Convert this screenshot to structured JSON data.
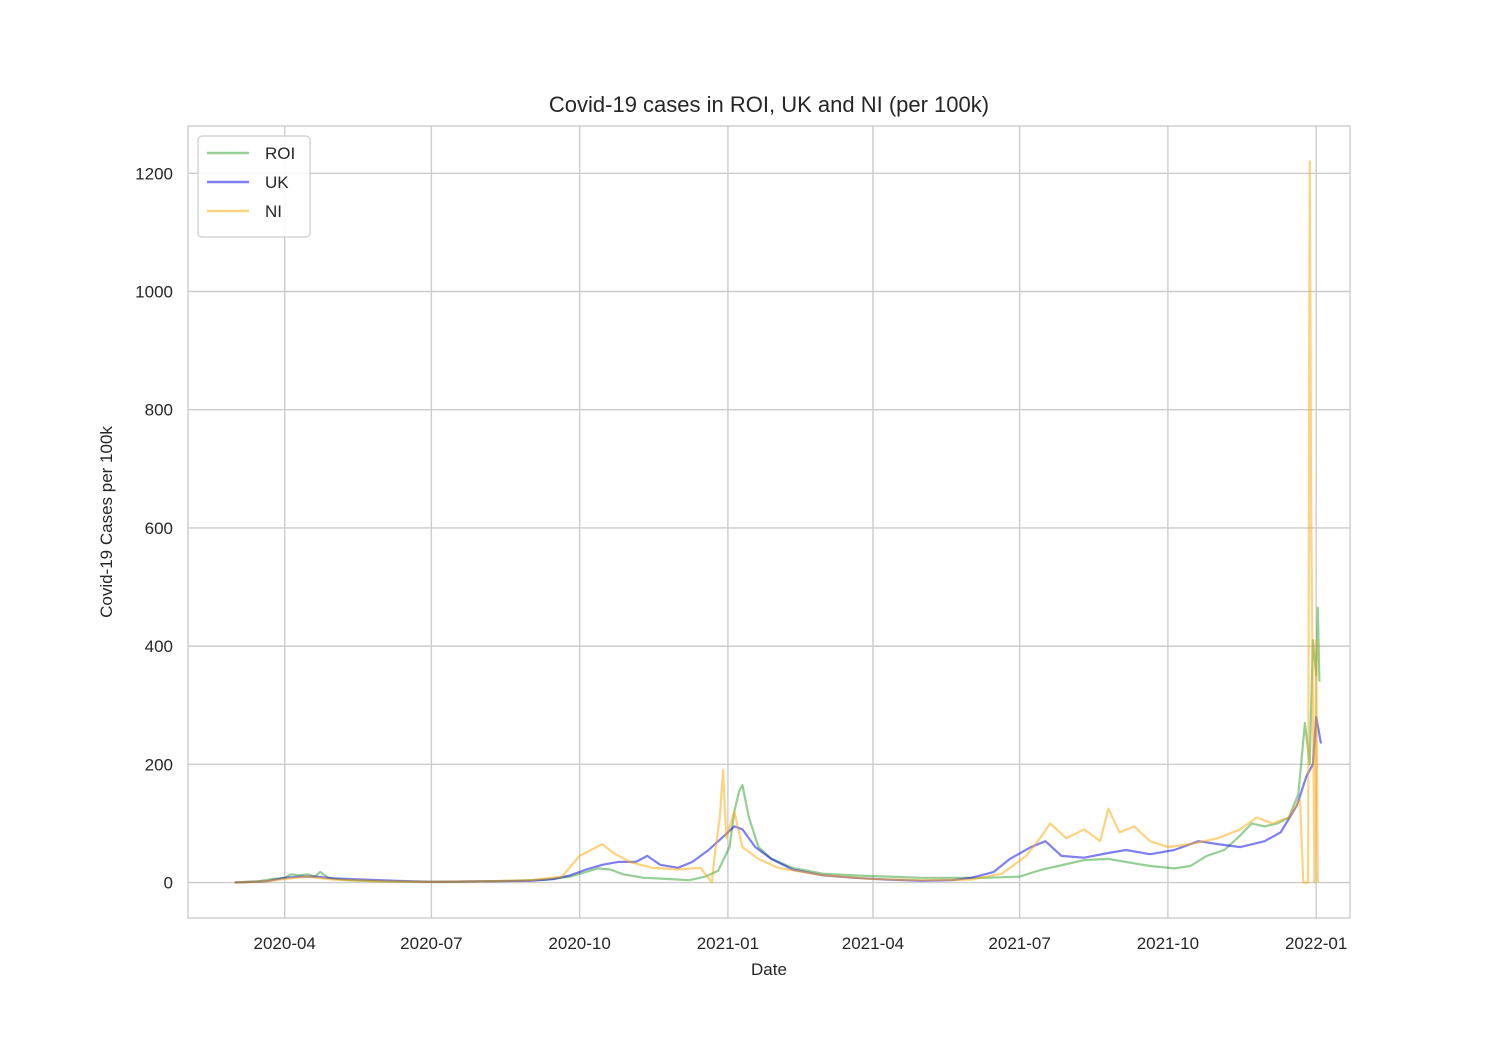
{
  "chart_data": {
    "type": "line",
    "title": "Covid-19 cases in ROI, UK and NI (per 100k)",
    "xlabel": "Date",
    "ylabel": "Covid-19 Cases per 100k",
    "xlim": [
      "2020-02-01",
      "2022-01-22"
    ],
    "ylim": [
      -60,
      1280
    ],
    "x_ticks": [
      "2020-04",
      "2020-07",
      "2020-10",
      "2021-01",
      "2021-04",
      "2021-07",
      "2021-10",
      "2022-01"
    ],
    "y_ticks": [
      0,
      200,
      400,
      600,
      800,
      1000,
      1200
    ],
    "grid": true,
    "legend_position": "top-left",
    "series": [
      {
        "name": "ROI",
        "color": "#2ca02c",
        "points": [
          [
            "2020-03-01",
            0
          ],
          [
            "2020-03-15",
            2
          ],
          [
            "2020-03-25",
            6
          ],
          [
            "2020-04-01",
            8
          ],
          [
            "2020-04-05",
            14
          ],
          [
            "2020-04-10",
            12
          ],
          [
            "2020-04-15",
            14
          ],
          [
            "2020-04-20",
            10
          ],
          [
            "2020-04-23",
            18
          ],
          [
            "2020-04-28",
            8
          ],
          [
            "2020-05-10",
            4
          ],
          [
            "2020-06-01",
            2
          ],
          [
            "2020-07-01",
            1
          ],
          [
            "2020-08-01",
            2
          ],
          [
            "2020-08-20",
            3
          ],
          [
            "2020-09-10",
            5
          ],
          [
            "2020-09-25",
            10
          ],
          [
            "2020-10-05",
            18
          ],
          [
            "2020-10-12",
            24
          ],
          [
            "2020-10-20",
            22
          ],
          [
            "2020-10-28",
            14
          ],
          [
            "2020-11-10",
            8
          ],
          [
            "2020-11-25",
            6
          ],
          [
            "2020-12-08",
            4
          ],
          [
            "2020-12-18",
            10
          ],
          [
            "2020-12-26",
            20
          ],
          [
            "2021-01-02",
            60
          ],
          [
            "2021-01-05",
            120
          ],
          [
            "2021-01-08",
            155
          ],
          [
            "2021-01-10",
            165
          ],
          [
            "2021-01-14",
            110
          ],
          [
            "2021-01-20",
            60
          ],
          [
            "2021-01-28",
            40
          ],
          [
            "2021-02-10",
            25
          ],
          [
            "2021-03-01",
            15
          ],
          [
            "2021-03-20",
            12
          ],
          [
            "2021-04-10",
            10
          ],
          [
            "2021-05-01",
            8
          ],
          [
            "2021-05-20",
            8
          ],
          [
            "2021-06-10",
            8
          ],
          [
            "2021-07-01",
            10
          ],
          [
            "2021-07-15",
            22
          ],
          [
            "2021-07-25",
            28
          ],
          [
            "2021-08-10",
            38
          ],
          [
            "2021-08-25",
            40
          ],
          [
            "2021-09-05",
            35
          ],
          [
            "2021-09-20",
            28
          ],
          [
            "2021-10-05",
            24
          ],
          [
            "2021-10-15",
            28
          ],
          [
            "2021-10-25",
            45
          ],
          [
            "2021-11-05",
            55
          ],
          [
            "2021-11-15",
            80
          ],
          [
            "2021-11-22",
            100
          ],
          [
            "2021-11-30",
            95
          ],
          [
            "2021-12-08",
            100
          ],
          [
            "2021-12-15",
            110
          ],
          [
            "2021-12-21",
            150
          ],
          [
            "2021-12-25",
            270
          ],
          [
            "2021-12-28",
            200
          ],
          [
            "2021-12-30",
            410
          ],
          [
            "2022-01-01",
            350
          ],
          [
            "2022-01-02",
            465
          ],
          [
            "2022-01-03",
            340
          ]
        ]
      },
      {
        "name": "UK",
        "color": "#0000e6",
        "points": [
          [
            "2020-03-01",
            0
          ],
          [
            "2020-03-20",
            2
          ],
          [
            "2020-04-01",
            8
          ],
          [
            "2020-04-10",
            10
          ],
          [
            "2020-04-20",
            10
          ],
          [
            "2020-05-01",
            7
          ],
          [
            "2020-05-20",
            5
          ],
          [
            "2020-06-10",
            3
          ],
          [
            "2020-07-01",
            1
          ],
          [
            "2020-08-01",
            2
          ],
          [
            "2020-09-01",
            3
          ],
          [
            "2020-09-15",
            6
          ],
          [
            "2020-09-25",
            12
          ],
          [
            "2020-10-05",
            22
          ],
          [
            "2020-10-15",
            30
          ],
          [
            "2020-10-25",
            35
          ],
          [
            "2020-11-05",
            35
          ],
          [
            "2020-11-12",
            45
          ],
          [
            "2020-11-20",
            30
          ],
          [
            "2020-12-01",
            25
          ],
          [
            "2020-12-10",
            35
          ],
          [
            "2020-12-20",
            55
          ],
          [
            "2020-12-30",
            80
          ],
          [
            "2021-01-05",
            95
          ],
          [
            "2021-01-10",
            90
          ],
          [
            "2021-01-18",
            60
          ],
          [
            "2021-01-28",
            40
          ],
          [
            "2021-02-10",
            22
          ],
          [
            "2021-03-01",
            12
          ],
          [
            "2021-03-20",
            8
          ],
          [
            "2021-04-10",
            5
          ],
          [
            "2021-05-01",
            3
          ],
          [
            "2021-05-20",
            4
          ],
          [
            "2021-06-01",
            8
          ],
          [
            "2021-06-15",
            18
          ],
          [
            "2021-06-25",
            40
          ],
          [
            "2021-07-08",
            60
          ],
          [
            "2021-07-17",
            70
          ],
          [
            "2021-07-27",
            45
          ],
          [
            "2021-08-10",
            42
          ],
          [
            "2021-08-25",
            50
          ],
          [
            "2021-09-05",
            55
          ],
          [
            "2021-09-20",
            48
          ],
          [
            "2021-10-05",
            55
          ],
          [
            "2021-10-20",
            70
          ],
          [
            "2021-11-01",
            65
          ],
          [
            "2021-11-15",
            60
          ],
          [
            "2021-11-30",
            70
          ],
          [
            "2021-12-10",
            85
          ],
          [
            "2021-12-20",
            130
          ],
          [
            "2021-12-26",
            180
          ],
          [
            "2021-12-30",
            200
          ],
          [
            "2022-01-01",
            280
          ],
          [
            "2022-01-04",
            235
          ]
        ]
      },
      {
        "name": "NI",
        "color": "#ffa500",
        "points": [
          [
            "2020-03-01",
            0
          ],
          [
            "2020-03-20",
            2
          ],
          [
            "2020-04-01",
            6
          ],
          [
            "2020-04-15",
            10
          ],
          [
            "2020-05-01",
            5
          ],
          [
            "2020-06-01",
            2
          ],
          [
            "2020-07-01",
            1
          ],
          [
            "2020-08-01",
            2
          ],
          [
            "2020-09-01",
            4
          ],
          [
            "2020-09-20",
            10
          ],
          [
            "2020-10-01",
            45
          ],
          [
            "2020-10-08",
            55
          ],
          [
            "2020-10-15",
            65
          ],
          [
            "2020-10-22",
            50
          ],
          [
            "2020-11-01",
            35
          ],
          [
            "2020-11-15",
            25
          ],
          [
            "2020-12-01",
            22
          ],
          [
            "2020-12-15",
            25
          ],
          [
            "2020-12-22",
            0
          ],
          [
            "2020-12-24",
            50
          ],
          [
            "2020-12-27",
            110
          ],
          [
            "2020-12-29",
            190
          ],
          [
            "2020-12-31",
            75
          ],
          [
            "2021-01-05",
            120
          ],
          [
            "2021-01-10",
            60
          ],
          [
            "2021-01-20",
            40
          ],
          [
            "2021-02-01",
            25
          ],
          [
            "2021-03-01",
            12
          ],
          [
            "2021-04-01",
            6
          ],
          [
            "2021-05-01",
            4
          ],
          [
            "2021-06-01",
            5
          ],
          [
            "2021-06-20",
            15
          ],
          [
            "2021-07-05",
            45
          ],
          [
            "2021-07-15",
            80
          ],
          [
            "2021-07-20",
            100
          ],
          [
            "2021-07-30",
            75
          ],
          [
            "2021-08-10",
            90
          ],
          [
            "2021-08-20",
            70
          ],
          [
            "2021-08-25",
            125
          ],
          [
            "2021-09-01",
            85
          ],
          [
            "2021-09-10",
            95
          ],
          [
            "2021-09-20",
            70
          ],
          [
            "2021-10-01",
            60
          ],
          [
            "2021-10-15",
            65
          ],
          [
            "2021-11-01",
            75
          ],
          [
            "2021-11-15",
            90
          ],
          [
            "2021-11-25",
            110
          ],
          [
            "2021-12-05",
            100
          ],
          [
            "2021-12-15",
            110
          ],
          [
            "2021-12-22",
            140
          ],
          [
            "2021-12-24",
            0
          ],
          [
            "2021-12-27",
            0
          ],
          [
            "2021-12-28",
            1220
          ],
          [
            "2021-12-29",
            600
          ],
          [
            "2021-12-30",
            300
          ],
          [
            "2021-12-31",
            0
          ],
          [
            "2022-01-01",
            410
          ],
          [
            "2022-01-02",
            0
          ]
        ]
      }
    ]
  }
}
